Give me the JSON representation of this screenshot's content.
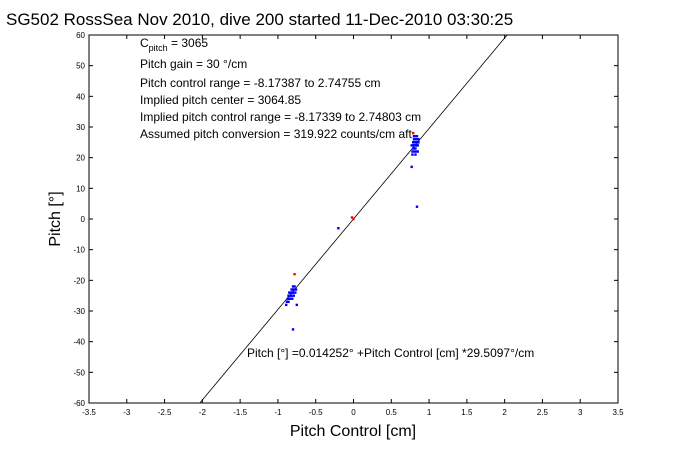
{
  "chart_data": {
    "type": "scatter",
    "title": "SG502 RossSea Nov 2010, dive 200 started 11-Dec-2010 03:30:25",
    "xlabel": "Pitch Control [cm]",
    "ylabel": "Pitch [°]",
    "xlim": [
      -3.5,
      3.5
    ],
    "ylim": [
      -60,
      60
    ],
    "xticks": [
      "-3.5",
      "-3",
      "-2.5",
      "-2",
      "-1.5",
      "-1",
      "-0.5",
      "0",
      "0.5",
      "1",
      "1.5",
      "2",
      "2.5",
      "3",
      "3.5"
    ],
    "yticks": [
      "60",
      "50",
      "40",
      "30",
      "20",
      "10",
      "0",
      "-10",
      "-20",
      "-30",
      "-40",
      "-50",
      "-60"
    ],
    "grid": false,
    "annotations": {
      "c_pitch_prefix": "C",
      "c_pitch_sub": "pitch",
      "c_pitch_value": " = 3065",
      "pitch_gain": "Pitch gain = 30 °/cm",
      "pitch_control_range": "Pitch control range = -8.17387 to 2.74755 cm",
      "implied_pitch_center": "Implied pitch center = 3064.85",
      "implied_control_range": "Implied pitch control range = -8.17339 to 2.74803 cm",
      "assumed_conversion": "Assumed pitch conversion = 319.922 counts/cm aft",
      "fit_equation": "Pitch [°] =0.014252° +Pitch Control [cm] *29.5097°/cm"
    },
    "fit_line": {
      "intercept": 0.014252,
      "slope": 29.5097
    },
    "series": [
      {
        "color": "#0000ff",
        "points": [
          [
            0.78,
            22
          ],
          [
            0.79,
            23
          ],
          [
            0.79,
            24
          ],
          [
            0.8,
            25
          ],
          [
            0.8,
            26
          ],
          [
            0.81,
            24
          ],
          [
            0.81,
            25
          ],
          [
            0.82,
            26
          ],
          [
            0.82,
            23
          ],
          [
            0.83,
            24
          ],
          [
            0.83,
            25
          ],
          [
            0.84,
            27
          ],
          [
            0.84,
            26
          ],
          [
            0.85,
            25
          ],
          [
            0.85,
            24
          ],
          [
            0.86,
            26
          ],
          [
            0.8,
            23
          ],
          [
            0.81,
            22
          ],
          [
            0.82,
            21
          ],
          [
            0.83,
            22
          ],
          [
            0.79,
            25
          ],
          [
            0.8,
            24
          ],
          [
            0.81,
            27
          ],
          [
            0.82,
            25
          ],
          [
            0.84,
            24
          ],
          [
            0.86,
            25
          ],
          [
            0.85,
            22
          ],
          [
            0.78,
            21
          ],
          [
            0.77,
            24
          ],
          [
            0.8,
            27
          ],
          [
            0.84,
            4
          ],
          [
            -0.88,
            -27
          ],
          [
            -0.87,
            -26
          ],
          [
            -0.86,
            -25
          ],
          [
            -0.85,
            -26
          ],
          [
            -0.85,
            -24
          ],
          [
            -0.84,
            -25
          ],
          [
            -0.83,
            -24
          ],
          [
            -0.82,
            -23
          ],
          [
            -0.82,
            -25
          ],
          [
            -0.81,
            -24
          ],
          [
            -0.8,
            -23
          ],
          [
            -0.8,
            -22
          ],
          [
            -0.79,
            -23
          ],
          [
            -0.78,
            -22
          ],
          [
            -0.77,
            -24
          ],
          [
            -0.86,
            -27
          ],
          [
            -0.84,
            -26
          ],
          [
            -0.83,
            -25
          ],
          [
            -0.81,
            -26
          ],
          [
            -0.79,
            -25
          ],
          [
            -0.89,
            -28
          ],
          [
            -0.76,
            -23
          ],
          [
            -0.8,
            -24
          ],
          [
            -0.75,
            -28
          ],
          [
            -0.8,
            -36
          ],
          [
            -0.2,
            -3
          ],
          [
            0.77,
            17
          ]
        ]
      },
      {
        "color": "#ff0000",
        "points": [
          [
            0.0,
            0.0
          ],
          [
            -0.78,
            -18
          ],
          [
            0.79,
            28
          ],
          [
            -0.02,
            0.5
          ]
        ]
      }
    ]
  }
}
